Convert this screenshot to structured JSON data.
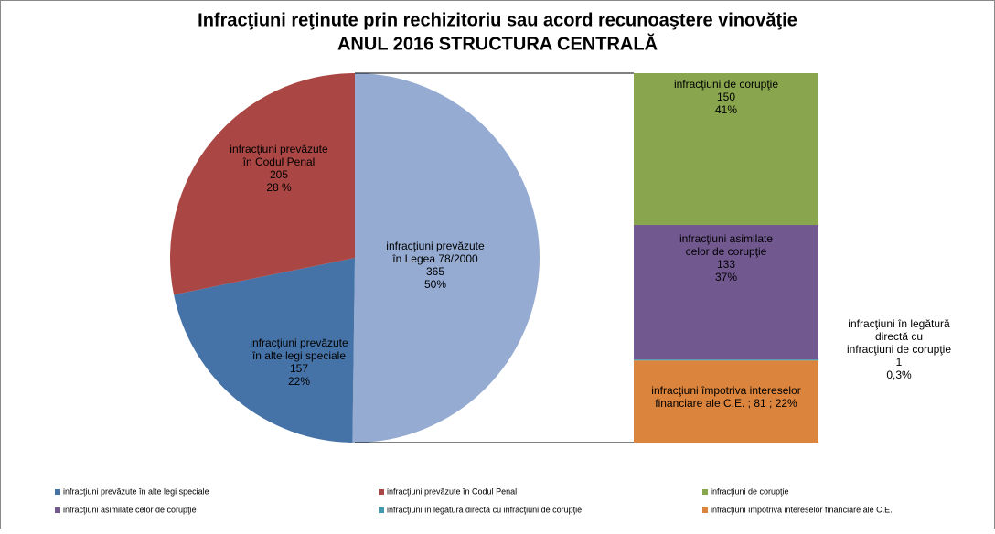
{
  "chart_data": {
    "type": "pie-of-bar",
    "title": [
      "Infracţiuni reţinute prin rechizitoriu sau acord recunoaştere vinovăţie",
      "ANUL 2016  STRUCTURA CENTRALĂ"
    ],
    "pie": {
      "categories": [
        [
          "infracţiuni  prevăzute",
          "în Legea  78/2000"
        ],
        [
          "infracţiuni  prevăzute",
          "în alte legi speciale"
        ],
        [
          "infracţiuni  prevăzute",
          "în Codul Penal"
        ]
      ],
      "values": [
        365,
        157,
        205
      ],
      "percents": [
        50,
        22,
        28
      ],
      "percent_labels": [
        "50%",
        "22%",
        "28 %"
      ],
      "colors": [
        "#95abd2",
        "#4572a7",
        "#aa4643"
      ]
    },
    "bar": {
      "categories": [
        [
          "infracţiuni  de corupţie"
        ],
        [
          "infracţiuni  asimilate",
          "celor de corupţie"
        ],
        [
          "infracţiuni  în legătură",
          "directă cu",
          "infracţiuni  de corupţie"
        ],
        [
          "infracţiuni  împotriva intereselor",
          "financiare  ale C.E."
        ]
      ],
      "label_separator": "  ;  ",
      "values": [
        150,
        133,
        1,
        81
      ],
      "percents": [
        41,
        37,
        0.3,
        22
      ],
      "percent_labels": [
        "41%",
        "37%",
        "0,3%",
        "22%"
      ],
      "colors": [
        "#89a54e",
        "#71588f",
        "#4198af",
        "#db843d"
      ]
    },
    "legend": {
      "position": "bottom",
      "entries": [
        {
          "name": "infracţiuni prevăzute în alte legi speciale",
          "color": "#4572a7"
        },
        {
          "name": "infracţiuni prevăzute în Codul Penal",
          "color": "#aa4643"
        },
        {
          "name": "infracţiuni de corupţie",
          "color": "#89a54e"
        },
        {
          "name": "infracţiuni asimilate celor de corupţie",
          "color": "#71588f"
        },
        {
          "name": "infracţiuni în legătură directă cu infracţiuni de corupţie",
          "color": "#4198af"
        },
        {
          "name": "infracţiuni împotriva intereselor financiare ale C.E.",
          "color": "#db843d"
        }
      ]
    }
  }
}
